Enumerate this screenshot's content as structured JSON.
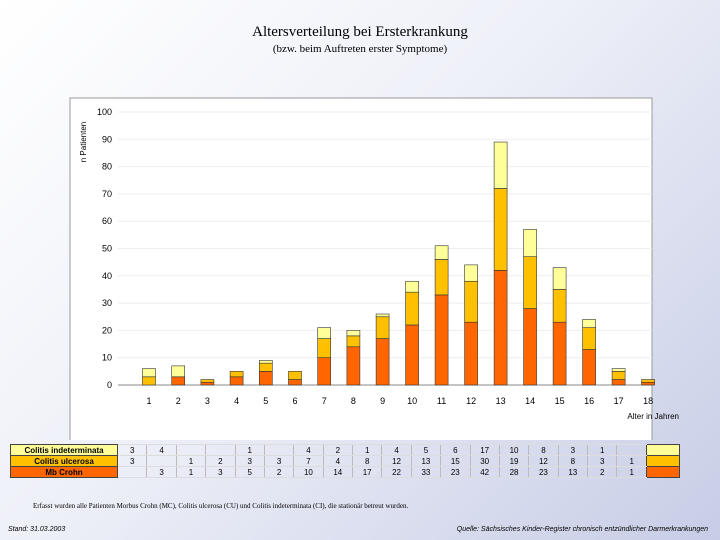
{
  "header": {
    "title": "Altersverteilung bei Ersterkrankung",
    "subtitle": "(bzw. beim Auftreten erster Symptome)"
  },
  "colors": {
    "ci": "#ffff99",
    "cu": "#ffc000",
    "mc": "#ff6600"
  },
  "chart_data": {
    "type": "bar",
    "stacked": true,
    "ylabel": "n Patienten",
    "xlabel": "Alter in Jahren",
    "ylim": [
      0,
      100
    ],
    "yticks": [
      0,
      10,
      20,
      30,
      40,
      50,
      60,
      70,
      80,
      90,
      100
    ],
    "categories": [
      "1",
      "2",
      "3",
      "4",
      "5",
      "6",
      "7",
      "8",
      "9",
      "10",
      "11",
      "12",
      "13",
      "14",
      "15",
      "16",
      "17",
      "18"
    ],
    "series": [
      {
        "name": "Mb Crohn",
        "key": "mc",
        "values": [
          0,
          3,
          1,
          3,
          5,
          2,
          10,
          14,
          17,
          22,
          33,
          23,
          42,
          28,
          23,
          13,
          2,
          1
        ]
      },
      {
        "name": "Colitis ulcerosa",
        "key": "cu",
        "values": [
          3,
          0,
          1,
          2,
          3,
          3,
          7,
          4,
          8,
          12,
          13,
          15,
          30,
          19,
          12,
          8,
          3,
          1
        ]
      },
      {
        "name": "Colitis indeterminata",
        "key": "ci",
        "values": [
          3,
          4,
          0,
          0,
          1,
          0,
          4,
          2,
          1,
          4,
          5,
          6,
          17,
          10,
          8,
          3,
          1,
          0
        ]
      }
    ],
    "table_rows": [
      {
        "label": "Colitis indeterminata",
        "key": "ci",
        "cells": [
          "3",
          "4",
          "",
          "",
          "1",
          "",
          "4",
          "2",
          "1",
          "4",
          "5",
          "6",
          "17",
          "10",
          "8",
          "3",
          "1",
          ""
        ]
      },
      {
        "label": "Colitis ulcerosa",
        "key": "cu",
        "cells": [
          "3",
          "",
          "1",
          "2",
          "3",
          "3",
          "7",
          "4",
          "8",
          "12",
          "13",
          "15",
          "30",
          "19",
          "12",
          "8",
          "3",
          "1"
        ]
      },
      {
        "label": "Mb Crohn",
        "key": "mc",
        "cells": [
          "",
          "3",
          "1",
          "3",
          "5",
          "2",
          "10",
          "14",
          "17",
          "22",
          "33",
          "23",
          "42",
          "28",
          "23",
          "13",
          "2",
          "1"
        ]
      }
    ]
  },
  "footer": {
    "note": "Erfasst wurden alle Patienten Morbus Crohn (MC), Colitis ulcerosa (CU) und Colitis indeterminata (CI), die stationär betreut wurden.",
    "stand": "Stand: 31.03.2003",
    "source": "Quelle: Sächsisches Kinder-Register chronisch entzündlicher Darmerkrankungen"
  }
}
